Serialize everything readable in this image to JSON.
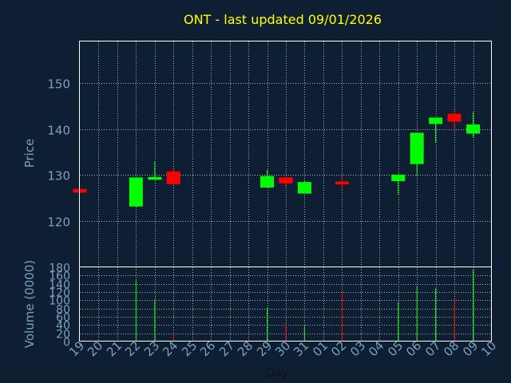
{
  "colors": {
    "background": "#0f1f33",
    "plot_border": "#ffffff",
    "grid": "#b0b0b0",
    "up": "#00ff00",
    "down": "#ff0000",
    "title": "#ffff00",
    "ticks": "#7f9fbf"
  },
  "chart_data": [
    {
      "type": "candlestick",
      "title": "ONT - last updated 09/01/2026",
      "ylabel": "Price",
      "ylim": [
        110,
        159
      ],
      "yticks": [
        120,
        130,
        140,
        150
      ],
      "grid": true,
      "categories": [
        "19",
        "20",
        "21",
        "22",
        "23",
        "24",
        "25",
        "26",
        "27",
        "28",
        "29",
        "30",
        "31",
        "01",
        "02",
        "03",
        "04",
        "05",
        "06",
        "07",
        "08",
        "09",
        "10"
      ],
      "candles": [
        {
          "x": "19",
          "open": 127.0,
          "close": 126.2,
          "high": 127.0,
          "low": 126.2
        },
        {
          "x": "22",
          "open": 123.2,
          "close": 129.5,
          "high": 129.5,
          "low": 123.2
        },
        {
          "x": "23",
          "open": 129.0,
          "close": 129.6,
          "high": 133.0,
          "low": 129.0
        },
        {
          "x": "24",
          "open": 130.8,
          "close": 128.0,
          "high": 131.7,
          "low": 128.0
        },
        {
          "x": "29",
          "open": 127.3,
          "close": 129.8,
          "high": 131.2,
          "low": 127.3
        },
        {
          "x": "30",
          "open": 129.5,
          "close": 128.2,
          "high": 129.5,
          "low": 127.2
        },
        {
          "x": "31",
          "open": 126.0,
          "close": 128.5,
          "high": 128.8,
          "low": 126.0
        },
        {
          "x": "02",
          "open": 128.6,
          "close": 128.0,
          "high": 130.2,
          "low": 126.8
        },
        {
          "x": "05",
          "open": 128.7,
          "close": 130.1,
          "high": 130.1,
          "low": 125.8
        },
        {
          "x": "06",
          "open": 132.4,
          "close": 139.2,
          "high": 139.2,
          "low": 129.8
        },
        {
          "x": "07",
          "open": 141.1,
          "close": 142.5,
          "high": 142.5,
          "low": 137.0
        },
        {
          "x": "08",
          "open": 143.3,
          "close": 141.6,
          "high": 144.2,
          "low": 139.8
        },
        {
          "x": "09",
          "open": 139.0,
          "close": 141.0,
          "high": 143.7,
          "low": 138.2
        }
      ]
    },
    {
      "type": "bar",
      "ylabel": "Volume (0000)",
      "xlabel": "Day",
      "ylim": [
        0,
        180
      ],
      "yticks": [
        0,
        20,
        40,
        60,
        80,
        100,
        120,
        140,
        160,
        180
      ],
      "grid": true,
      "categories": [
        "19",
        "20",
        "21",
        "22",
        "23",
        "24",
        "25",
        "26",
        "27",
        "28",
        "29",
        "30",
        "31",
        "01",
        "02",
        "03",
        "04",
        "05",
        "06",
        "07",
        "08",
        "09",
        "10"
      ],
      "bars": [
        {
          "x": "19",
          "value": 2,
          "direction": "down"
        },
        {
          "x": "22",
          "value": 148,
          "direction": "up"
        },
        {
          "x": "23",
          "value": 102,
          "direction": "up"
        },
        {
          "x": "24",
          "value": 18,
          "direction": "down"
        },
        {
          "x": "29",
          "value": 82,
          "direction": "up"
        },
        {
          "x": "30",
          "value": 44,
          "direction": "down"
        },
        {
          "x": "31",
          "value": 38,
          "direction": "up"
        },
        {
          "x": "02",
          "value": 120,
          "direction": "down"
        },
        {
          "x": "05",
          "value": 95,
          "direction": "up"
        },
        {
          "x": "06",
          "value": 135,
          "direction": "up"
        },
        {
          "x": "07",
          "value": 130,
          "direction": "up"
        },
        {
          "x": "08",
          "value": 102,
          "direction": "down"
        },
        {
          "x": "09",
          "value": 175,
          "direction": "up"
        }
      ]
    }
  ]
}
